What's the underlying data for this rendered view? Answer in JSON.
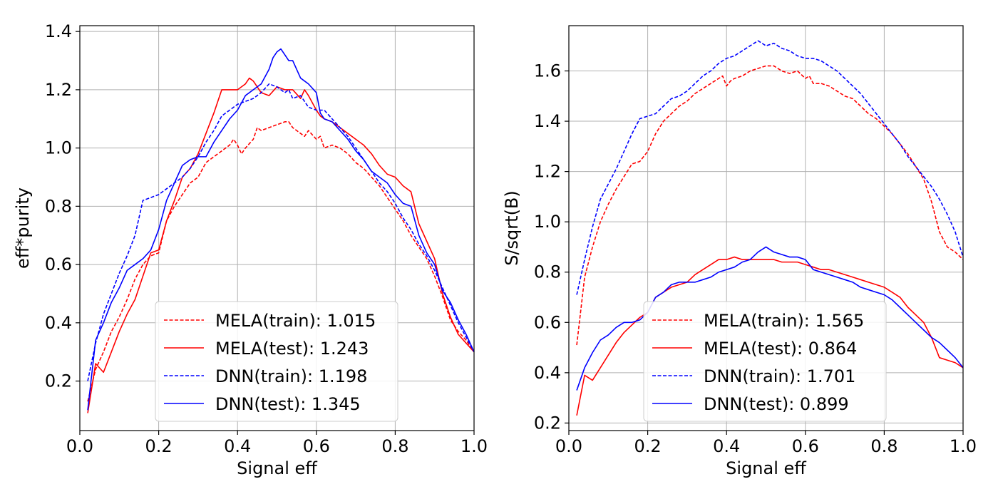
{
  "chart_data": [
    {
      "type": "line",
      "xlabel": "Signal eff",
      "ylabel": "eff*purity",
      "xlim": [
        0.0,
        1.0
      ],
      "ylim": [
        0.03,
        1.42
      ],
      "xticks": [
        0.0,
        0.2,
        0.4,
        0.6,
        0.8,
        1.0
      ],
      "xtick_labels": [
        "0.0",
        "0.2",
        "0.4",
        "0.6",
        "0.8",
        "1.0"
      ],
      "yticks": [
        0.2,
        0.4,
        0.6,
        0.8,
        1.0,
        1.2,
        1.4
      ],
      "ytick_labels": [
        "0.2",
        "0.4",
        "0.6",
        "0.8",
        "1.0",
        "1.2",
        "1.4"
      ],
      "grid": true,
      "legend_position": "bottom-center",
      "series": [
        {
          "name": "MELA(train): 1.015",
          "color": "#ff0000",
          "dash": "dashed",
          "x": [
            0.02,
            0.04,
            0.06,
            0.08,
            0.1,
            0.12,
            0.14,
            0.16,
            0.18,
            0.2,
            0.22,
            0.24,
            0.26,
            0.28,
            0.3,
            0.32,
            0.34,
            0.36,
            0.38,
            0.39,
            0.4,
            0.41,
            0.42,
            0.44,
            0.45,
            0.46,
            0.48,
            0.5,
            0.52,
            0.53,
            0.54,
            0.56,
            0.57,
            0.58,
            0.6,
            0.61,
            0.62,
            0.64,
            0.66,
            0.68,
            0.7,
            0.72,
            0.74,
            0.76,
            0.78,
            0.8,
            0.82,
            0.84,
            0.86,
            0.88,
            0.9,
            0.92,
            0.94,
            0.96,
            0.98,
            1.0
          ],
          "y": [
            0.13,
            0.24,
            0.3,
            0.37,
            0.42,
            0.48,
            0.55,
            0.6,
            0.63,
            0.64,
            0.75,
            0.8,
            0.84,
            0.88,
            0.9,
            0.95,
            0.97,
            0.99,
            1.01,
            1.03,
            1.01,
            0.98,
            1.0,
            1.03,
            1.07,
            1.06,
            1.07,
            1.08,
            1.09,
            1.09,
            1.07,
            1.05,
            1.04,
            1.06,
            1.03,
            1.04,
            1.0,
            1.01,
            1.0,
            0.98,
            0.95,
            0.93,
            0.9,
            0.87,
            0.83,
            0.79,
            0.75,
            0.7,
            0.66,
            0.62,
            0.56,
            0.49,
            0.41,
            0.37,
            0.34,
            0.3
          ]
        },
        {
          "name": "MELA(test): 1.243",
          "color": "#ff0000",
          "dash": "solid",
          "x": [
            0.02,
            0.04,
            0.06,
            0.08,
            0.1,
            0.12,
            0.14,
            0.16,
            0.18,
            0.2,
            0.22,
            0.24,
            0.26,
            0.28,
            0.3,
            0.32,
            0.34,
            0.36,
            0.38,
            0.4,
            0.42,
            0.43,
            0.44,
            0.46,
            0.48,
            0.5,
            0.52,
            0.54,
            0.56,
            0.57,
            0.58,
            0.6,
            0.61,
            0.62,
            0.64,
            0.66,
            0.68,
            0.7,
            0.72,
            0.74,
            0.76,
            0.78,
            0.8,
            0.82,
            0.84,
            0.86,
            0.88,
            0.9,
            0.92,
            0.94,
            0.96,
            0.98,
            1.0
          ],
          "y": [
            0.09,
            0.26,
            0.23,
            0.3,
            0.37,
            0.43,
            0.48,
            0.56,
            0.64,
            0.65,
            0.75,
            0.82,
            0.9,
            0.93,
            0.98,
            1.05,
            1.12,
            1.2,
            1.2,
            1.2,
            1.22,
            1.24,
            1.23,
            1.19,
            1.18,
            1.21,
            1.2,
            1.2,
            1.17,
            1.2,
            1.18,
            1.13,
            1.11,
            1.1,
            1.09,
            1.07,
            1.05,
            1.03,
            1.01,
            0.98,
            0.94,
            0.91,
            0.9,
            0.87,
            0.85,
            0.74,
            0.68,
            0.62,
            0.5,
            0.42,
            0.36,
            0.33,
            0.3
          ]
        },
        {
          "name": "DNN(train): 1.198",
          "color": "#0000ff",
          "dash": "dashed",
          "x": [
            0.02,
            0.04,
            0.06,
            0.08,
            0.1,
            0.12,
            0.14,
            0.16,
            0.18,
            0.2,
            0.22,
            0.24,
            0.26,
            0.28,
            0.3,
            0.32,
            0.34,
            0.36,
            0.38,
            0.4,
            0.42,
            0.44,
            0.46,
            0.48,
            0.5,
            0.52,
            0.53,
            0.54,
            0.56,
            0.58,
            0.6,
            0.62,
            0.64,
            0.66,
            0.68,
            0.7,
            0.72,
            0.74,
            0.76,
            0.78,
            0.8,
            0.82,
            0.84,
            0.86,
            0.88,
            0.9,
            0.92,
            0.94,
            0.96,
            0.98,
            1.0
          ],
          "y": [
            0.2,
            0.33,
            0.43,
            0.5,
            0.57,
            0.63,
            0.7,
            0.82,
            0.83,
            0.84,
            0.86,
            0.88,
            0.9,
            0.93,
            0.97,
            1.02,
            1.06,
            1.11,
            1.13,
            1.15,
            1.16,
            1.17,
            1.19,
            1.22,
            1.21,
            1.19,
            1.2,
            1.17,
            1.18,
            1.14,
            1.13,
            1.13,
            1.1,
            1.07,
            1.04,
            1.0,
            0.96,
            0.92,
            0.88,
            0.85,
            0.81,
            0.76,
            0.72,
            0.67,
            0.63,
            0.58,
            0.52,
            0.46,
            0.4,
            0.35,
            0.3
          ]
        },
        {
          "name": "DNN(test): 1.345",
          "color": "#0000ff",
          "dash": "solid",
          "x": [
            0.02,
            0.04,
            0.06,
            0.08,
            0.1,
            0.12,
            0.14,
            0.16,
            0.18,
            0.2,
            0.22,
            0.24,
            0.26,
            0.28,
            0.3,
            0.32,
            0.34,
            0.36,
            0.38,
            0.4,
            0.42,
            0.44,
            0.46,
            0.48,
            0.49,
            0.5,
            0.51,
            0.52,
            0.53,
            0.54,
            0.56,
            0.58,
            0.6,
            0.61,
            0.62,
            0.64,
            0.66,
            0.68,
            0.7,
            0.72,
            0.74,
            0.76,
            0.78,
            0.8,
            0.82,
            0.84,
            0.86,
            0.88,
            0.9,
            0.92,
            0.94,
            0.96,
            0.98,
            1.0
          ],
          "y": [
            0.1,
            0.34,
            0.4,
            0.47,
            0.52,
            0.58,
            0.6,
            0.62,
            0.65,
            0.72,
            0.82,
            0.88,
            0.94,
            0.96,
            0.97,
            0.97,
            1.02,
            1.06,
            1.1,
            1.13,
            1.18,
            1.2,
            1.22,
            1.27,
            1.31,
            1.33,
            1.34,
            1.32,
            1.3,
            1.3,
            1.24,
            1.22,
            1.19,
            1.12,
            1.1,
            1.09,
            1.06,
            1.03,
            0.99,
            0.96,
            0.92,
            0.9,
            0.88,
            0.84,
            0.81,
            0.8,
            0.7,
            0.64,
            0.6,
            0.51,
            0.47,
            0.41,
            0.36,
            0.3
          ]
        }
      ]
    },
    {
      "type": "line",
      "xlabel": "Signal eff",
      "ylabel": "S/sqrt(B)",
      "xlim": [
        0.0,
        1.0
      ],
      "ylim": [
        0.17,
        1.78
      ],
      "xticks": [
        0.0,
        0.2,
        0.4,
        0.6,
        0.8,
        1.0
      ],
      "xtick_labels": [
        "0.0",
        "0.2",
        "0.4",
        "0.6",
        "0.8",
        "1.0"
      ],
      "yticks": [
        0.2,
        0.4,
        0.6,
        0.8,
        1.0,
        1.2,
        1.4,
        1.6
      ],
      "ytick_labels": [
        "0.2",
        "0.4",
        "0.6",
        "0.8",
        "1.0",
        "1.2",
        "1.4",
        "1.6"
      ],
      "grid": true,
      "legend_position": "bottom-center",
      "series": [
        {
          "name": "MELA(train): 1.565",
          "color": "#ff0000",
          "dash": "dashed",
          "x": [
            0.02,
            0.04,
            0.06,
            0.08,
            0.1,
            0.12,
            0.14,
            0.16,
            0.18,
            0.2,
            0.22,
            0.24,
            0.26,
            0.28,
            0.3,
            0.32,
            0.34,
            0.36,
            0.38,
            0.39,
            0.4,
            0.41,
            0.42,
            0.44,
            0.46,
            0.48,
            0.5,
            0.52,
            0.53,
            0.54,
            0.56,
            0.58,
            0.6,
            0.61,
            0.62,
            0.64,
            0.66,
            0.68,
            0.7,
            0.72,
            0.74,
            0.76,
            0.78,
            0.8,
            0.82,
            0.84,
            0.86,
            0.88,
            0.9,
            0.92,
            0.94,
            0.96,
            0.98,
            1.0
          ],
          "y": [
            0.51,
            0.78,
            0.9,
            1.0,
            1.07,
            1.13,
            1.18,
            1.23,
            1.24,
            1.28,
            1.35,
            1.4,
            1.43,
            1.46,
            1.48,
            1.51,
            1.53,
            1.55,
            1.57,
            1.58,
            1.54,
            1.56,
            1.57,
            1.58,
            1.6,
            1.61,
            1.62,
            1.62,
            1.61,
            1.6,
            1.59,
            1.6,
            1.57,
            1.58,
            1.55,
            1.55,
            1.54,
            1.52,
            1.5,
            1.49,
            1.46,
            1.43,
            1.41,
            1.38,
            1.35,
            1.31,
            1.27,
            1.22,
            1.17,
            1.08,
            0.96,
            0.9,
            0.88,
            0.85
          ]
        },
        {
          "name": "MELA(test): 0.864",
          "color": "#ff0000",
          "dash": "solid",
          "x": [
            0.02,
            0.04,
            0.06,
            0.08,
            0.1,
            0.12,
            0.14,
            0.16,
            0.18,
            0.2,
            0.22,
            0.24,
            0.26,
            0.28,
            0.3,
            0.32,
            0.34,
            0.36,
            0.38,
            0.4,
            0.42,
            0.44,
            0.46,
            0.48,
            0.5,
            0.52,
            0.54,
            0.56,
            0.58,
            0.6,
            0.62,
            0.64,
            0.66,
            0.68,
            0.7,
            0.72,
            0.74,
            0.76,
            0.78,
            0.8,
            0.82,
            0.84,
            0.86,
            0.88,
            0.9,
            0.92,
            0.94,
            0.96,
            0.98,
            1.0
          ],
          "y": [
            0.23,
            0.39,
            0.37,
            0.42,
            0.47,
            0.52,
            0.56,
            0.59,
            0.62,
            0.64,
            0.7,
            0.72,
            0.74,
            0.75,
            0.76,
            0.79,
            0.81,
            0.83,
            0.85,
            0.85,
            0.86,
            0.85,
            0.85,
            0.85,
            0.85,
            0.85,
            0.84,
            0.84,
            0.84,
            0.83,
            0.82,
            0.81,
            0.81,
            0.8,
            0.79,
            0.78,
            0.77,
            0.76,
            0.75,
            0.74,
            0.72,
            0.7,
            0.66,
            0.63,
            0.6,
            0.54,
            0.46,
            0.45,
            0.44,
            0.42
          ]
        },
        {
          "name": "DNN(train): 1.701",
          "color": "#0000ff",
          "dash": "dashed",
          "x": [
            0.02,
            0.04,
            0.06,
            0.08,
            0.1,
            0.12,
            0.14,
            0.16,
            0.18,
            0.2,
            0.22,
            0.24,
            0.26,
            0.28,
            0.3,
            0.32,
            0.34,
            0.36,
            0.38,
            0.4,
            0.42,
            0.44,
            0.46,
            0.48,
            0.5,
            0.52,
            0.54,
            0.56,
            0.58,
            0.6,
            0.62,
            0.64,
            0.66,
            0.68,
            0.7,
            0.72,
            0.74,
            0.76,
            0.78,
            0.8,
            0.82,
            0.84,
            0.86,
            0.88,
            0.9,
            0.92,
            0.94,
            0.96,
            0.98,
            1.0
          ],
          "y": [
            0.71,
            0.85,
            0.98,
            1.09,
            1.15,
            1.21,
            1.28,
            1.35,
            1.41,
            1.42,
            1.43,
            1.46,
            1.49,
            1.5,
            1.52,
            1.55,
            1.58,
            1.6,
            1.63,
            1.65,
            1.66,
            1.68,
            1.7,
            1.72,
            1.7,
            1.71,
            1.69,
            1.68,
            1.66,
            1.65,
            1.65,
            1.64,
            1.62,
            1.6,
            1.57,
            1.54,
            1.51,
            1.47,
            1.43,
            1.39,
            1.35,
            1.31,
            1.26,
            1.22,
            1.18,
            1.14,
            1.09,
            1.03,
            0.96,
            0.86
          ]
        },
        {
          "name": "DNN(test): 0.899",
          "color": "#0000ff",
          "dash": "solid",
          "x": [
            0.02,
            0.04,
            0.06,
            0.08,
            0.1,
            0.12,
            0.14,
            0.16,
            0.18,
            0.2,
            0.22,
            0.24,
            0.26,
            0.28,
            0.3,
            0.32,
            0.34,
            0.36,
            0.38,
            0.4,
            0.42,
            0.44,
            0.46,
            0.48,
            0.5,
            0.52,
            0.54,
            0.56,
            0.58,
            0.6,
            0.62,
            0.64,
            0.66,
            0.68,
            0.7,
            0.72,
            0.74,
            0.76,
            0.78,
            0.8,
            0.82,
            0.84,
            0.86,
            0.88,
            0.9,
            0.92,
            0.94,
            0.96,
            0.98,
            1.0
          ],
          "y": [
            0.33,
            0.42,
            0.48,
            0.53,
            0.55,
            0.58,
            0.6,
            0.6,
            0.61,
            0.64,
            0.7,
            0.72,
            0.75,
            0.76,
            0.76,
            0.76,
            0.77,
            0.78,
            0.8,
            0.81,
            0.82,
            0.84,
            0.85,
            0.88,
            0.9,
            0.88,
            0.87,
            0.86,
            0.86,
            0.85,
            0.81,
            0.8,
            0.79,
            0.78,
            0.77,
            0.76,
            0.74,
            0.73,
            0.72,
            0.71,
            0.69,
            0.66,
            0.63,
            0.6,
            0.57,
            0.54,
            0.52,
            0.49,
            0.46,
            0.42
          ]
        }
      ]
    }
  ]
}
